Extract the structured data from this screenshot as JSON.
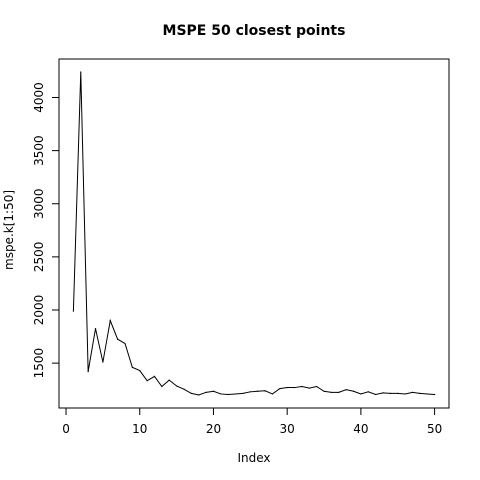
{
  "chart_data": {
    "type": "line",
    "title": "MSPE 50 closest points",
    "xlabel": "Index",
    "ylabel": "mspe.k[1:50]",
    "xlim": [
      1,
      50
    ],
    "ylim": [
      1200,
      4240
    ],
    "grid": false,
    "x_ticks": [
      0,
      10,
      20,
      30,
      40,
      50
    ],
    "y_ticks": [
      1500,
      2000,
      2500,
      3000,
      3500,
      4000
    ],
    "series": [
      {
        "x": [
          1,
          2,
          3,
          4,
          5,
          6,
          7,
          8,
          9,
          10,
          11,
          12,
          13,
          14,
          15,
          16,
          17,
          18,
          19,
          20,
          21,
          22,
          23,
          24,
          25,
          26,
          27,
          28,
          29,
          30,
          31,
          32,
          33,
          34,
          35,
          36,
          37,
          38,
          39,
          40,
          41,
          42,
          43,
          44,
          45,
          46,
          47,
          48,
          49,
          50
        ],
        "values": [
          1990,
          4240,
          1420,
          1825,
          1510,
          1900,
          1725,
          1685,
          1460,
          1430,
          1335,
          1375,
          1280,
          1340,
          1285,
          1255,
          1215,
          1200,
          1225,
          1235,
          1210,
          1205,
          1210,
          1215,
          1230,
          1235,
          1240,
          1210,
          1260,
          1270,
          1270,
          1280,
          1265,
          1280,
          1235,
          1225,
          1225,
          1250,
          1235,
          1210,
          1230,
          1205,
          1220,
          1215,
          1215,
          1210,
          1225,
          1215,
          1210,
          1205
        ],
        "color": "#000000"
      }
    ]
  }
}
